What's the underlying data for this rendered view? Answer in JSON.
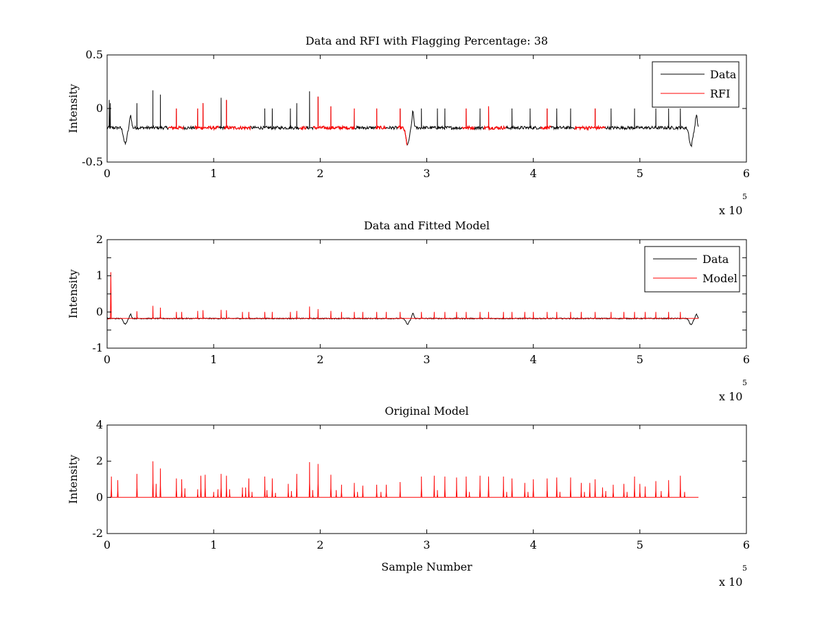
{
  "figure": {
    "background": "#ffffff",
    "colors": {
      "data": "#000000",
      "red": "#ff0000",
      "axis": "#000000"
    }
  },
  "chart_data": [
    {
      "type": "line",
      "title": "Data and RFI with Flagging Percentage: 38",
      "xlabel": "",
      "ylabel": "Intensity",
      "xlim": [
        0,
        6
      ],
      "ylim": [
        -0.5,
        0.5
      ],
      "x_ticks": [
        "0",
        "1",
        "2",
        "3",
        "4",
        "5",
        "6"
      ],
      "y_ticks": [
        "-0.5",
        "0",
        "0.5"
      ],
      "x_exponent": {
        "base": "x 10",
        "power": "5"
      },
      "legend": {
        "position": "top-right",
        "entries": [
          "Data",
          "RFI"
        ]
      },
      "baseline": -0.18,
      "x_end": 5.55,
      "dips": [
        {
          "x": 0.17,
          "y": -0.33
        },
        {
          "x": 2.82,
          "y": -0.34
        },
        {
          "x": 5.48,
          "y": -0.35
        }
      ],
      "bumps": [
        {
          "x": 0.22,
          "y": -0.06
        },
        {
          "x": 2.87,
          "y": -0.03
        },
        {
          "x": 5.53,
          "y": -0.06
        }
      ],
      "start_peak": {
        "x": 0.02,
        "y": 0.08
      },
      "rfi_flagged_ranges": [
        [
          0.57,
          0.72
        ],
        [
          0.82,
          1.05
        ],
        [
          1.1,
          1.35
        ],
        [
          1.8,
          1.87
        ],
        [
          1.93,
          2.32
        ],
        [
          2.52,
          2.62
        ],
        [
          2.72,
          2.82
        ],
        [
          3.33,
          3.45
        ],
        [
          3.53,
          3.75
        ],
        [
          4.07,
          4.17
        ],
        [
          4.38,
          4.68
        ]
      ],
      "spikes": [
        {
          "x": 0.03,
          "y": 0.05
        },
        {
          "x": 0.28,
          "y": 0.05
        },
        {
          "x": 0.43,
          "y": 0.17
        },
        {
          "x": 0.5,
          "y": 0.13
        },
        {
          "x": 0.65,
          "y": 0.0
        },
        {
          "x": 0.85,
          "y": 0.0
        },
        {
          "x": 0.9,
          "y": 0.05
        },
        {
          "x": 1.07,
          "y": 0.1
        },
        {
          "x": 1.12,
          "y": 0.08
        },
        {
          "x": 1.48,
          "y": 0.0
        },
        {
          "x": 1.55,
          "y": 0.0
        },
        {
          "x": 1.72,
          "y": 0.0
        },
        {
          "x": 1.78,
          "y": 0.05
        },
        {
          "x": 1.9,
          "y": 0.16
        },
        {
          "x": 1.98,
          "y": 0.11
        },
        {
          "x": 2.1,
          "y": 0.02
        },
        {
          "x": 2.32,
          "y": 0.0
        },
        {
          "x": 2.53,
          "y": 0.0
        },
        {
          "x": 2.75,
          "y": 0.0
        },
        {
          "x": 2.95,
          "y": 0.0
        },
        {
          "x": 3.1,
          "y": 0.0
        },
        {
          "x": 3.17,
          "y": 0.0
        },
        {
          "x": 3.37,
          "y": 0.0
        },
        {
          "x": 3.5,
          "y": 0.0
        },
        {
          "x": 3.58,
          "y": 0.02
        },
        {
          "x": 3.8,
          "y": 0.0
        },
        {
          "x": 3.97,
          "y": 0.0
        },
        {
          "x": 4.13,
          "y": 0.0
        },
        {
          "x": 4.22,
          "y": 0.0
        },
        {
          "x": 4.35,
          "y": 0.0
        },
        {
          "x": 4.58,
          "y": 0.0
        },
        {
          "x": 4.73,
          "y": 0.0
        },
        {
          "x": 4.95,
          "y": 0.0
        },
        {
          "x": 5.15,
          "y": 0.0
        },
        {
          "x": 5.27,
          "y": 0.0
        },
        {
          "x": 5.38,
          "y": 0.0
        }
      ]
    },
    {
      "type": "line",
      "title": "Data and Fitted Model",
      "xlabel": "",
      "ylabel": "Intensity",
      "xlim": [
        0,
        6
      ],
      "ylim": [
        -1,
        2
      ],
      "x_ticks": [
        "0",
        "1",
        "2",
        "3",
        "4",
        "5",
        "6"
      ],
      "y_ticks": [
        "-1",
        "-0.5",
        "0",
        "0.5",
        "1",
        "1.5",
        "2"
      ],
      "x_exponent": {
        "base": "x 10",
        "power": "5"
      },
      "legend": {
        "position": "top-right",
        "entries": [
          "Data",
          "Model"
        ]
      },
      "baseline": -0.18,
      "x_end": 5.55,
      "dips": [
        {
          "x": 0.17,
          "y": -0.33
        },
        {
          "x": 2.82,
          "y": -0.34
        },
        {
          "x": 5.48,
          "y": -0.35
        }
      ],
      "bumps": [
        {
          "x": 0.22,
          "y": -0.06
        },
        {
          "x": 2.87,
          "y": -0.03
        },
        {
          "x": 5.53,
          "y": -0.06
        }
      ],
      "model_start_spike": {
        "x": 0.035,
        "y": 1.1
      },
      "spikes": [
        {
          "x": 0.28,
          "y": 0.02
        },
        {
          "x": 0.43,
          "y": 0.17
        },
        {
          "x": 0.5,
          "y": 0.12
        },
        {
          "x": 0.65,
          "y": 0.0
        },
        {
          "x": 0.7,
          "y": 0.0
        },
        {
          "x": 0.85,
          "y": 0.03
        },
        {
          "x": 0.9,
          "y": 0.05
        },
        {
          "x": 1.07,
          "y": 0.06
        },
        {
          "x": 1.12,
          "y": 0.05
        },
        {
          "x": 1.27,
          "y": 0.0
        },
        {
          "x": 1.33,
          "y": 0.0
        },
        {
          "x": 1.48,
          "y": 0.0
        },
        {
          "x": 1.55,
          "y": 0.0
        },
        {
          "x": 1.72,
          "y": 0.0
        },
        {
          "x": 1.78,
          "y": 0.03
        },
        {
          "x": 1.9,
          "y": 0.15
        },
        {
          "x": 1.98,
          "y": 0.08
        },
        {
          "x": 2.1,
          "y": 0.03
        },
        {
          "x": 2.2,
          "y": 0.0
        },
        {
          "x": 2.32,
          "y": 0.0
        },
        {
          "x": 2.4,
          "y": 0.0
        },
        {
          "x": 2.53,
          "y": 0.0
        },
        {
          "x": 2.62,
          "y": 0.0
        },
        {
          "x": 2.75,
          "y": 0.0
        },
        {
          "x": 2.95,
          "y": 0.0
        },
        {
          "x": 3.07,
          "y": 0.0
        },
        {
          "x": 3.17,
          "y": 0.0
        },
        {
          "x": 3.28,
          "y": 0.0
        },
        {
          "x": 3.37,
          "y": 0.0
        },
        {
          "x": 3.5,
          "y": 0.0
        },
        {
          "x": 3.58,
          "y": 0.0
        },
        {
          "x": 3.72,
          "y": 0.0
        },
        {
          "x": 3.8,
          "y": 0.0
        },
        {
          "x": 3.92,
          "y": 0.0
        },
        {
          "x": 4.0,
          "y": 0.0
        },
        {
          "x": 4.13,
          "y": 0.0
        },
        {
          "x": 4.22,
          "y": 0.0
        },
        {
          "x": 4.35,
          "y": 0.0
        },
        {
          "x": 4.45,
          "y": 0.0
        },
        {
          "x": 4.58,
          "y": 0.0
        },
        {
          "x": 4.73,
          "y": 0.0
        },
        {
          "x": 4.85,
          "y": 0.0
        },
        {
          "x": 4.95,
          "y": 0.0
        },
        {
          "x": 5.05,
          "y": 0.0
        },
        {
          "x": 5.15,
          "y": 0.0
        },
        {
          "x": 5.27,
          "y": 0.0
        },
        {
          "x": 5.38,
          "y": 0.0
        }
      ]
    },
    {
      "type": "line",
      "title": "Original Model",
      "xlabel": "Sample Number",
      "ylabel": "Intensity",
      "xlim": [
        0,
        6
      ],
      "ylim": [
        -2,
        4
      ],
      "x_ticks": [
        "0",
        "1",
        "2",
        "3",
        "4",
        "5",
        "6"
      ],
      "y_ticks": [
        "-2",
        "0",
        "2",
        "4"
      ],
      "x_exponent": {
        "base": "x 10",
        "power": "5"
      },
      "baseline": 0,
      "x_start": 0.02,
      "x_end": 5.55,
      "spikes": [
        {
          "x": 0.04,
          "y": 1.15
        },
        {
          "x": 0.1,
          "y": 0.95
        },
        {
          "x": 0.28,
          "y": 1.3
        },
        {
          "x": 0.43,
          "y": 2.0
        },
        {
          "x": 0.46,
          "y": 0.75
        },
        {
          "x": 0.5,
          "y": 1.6
        },
        {
          "x": 0.65,
          "y": 1.05
        },
        {
          "x": 0.7,
          "y": 1.0
        },
        {
          "x": 0.73,
          "y": 0.5
        },
        {
          "x": 0.85,
          "y": 0.45
        },
        {
          "x": 0.88,
          "y": 1.2
        },
        {
          "x": 0.92,
          "y": 1.25
        },
        {
          "x": 1.0,
          "y": 0.3
        },
        {
          "x": 1.04,
          "y": 0.45
        },
        {
          "x": 1.07,
          "y": 1.3
        },
        {
          "x": 1.12,
          "y": 1.2
        },
        {
          "x": 1.15,
          "y": 0.45
        },
        {
          "x": 1.27,
          "y": 0.55
        },
        {
          "x": 1.3,
          "y": 0.55
        },
        {
          "x": 1.33,
          "y": 1.05
        },
        {
          "x": 1.36,
          "y": 0.3
        },
        {
          "x": 1.48,
          "y": 1.15
        },
        {
          "x": 1.5,
          "y": 0.4
        },
        {
          "x": 1.55,
          "y": 1.05
        },
        {
          "x": 1.58,
          "y": 0.25
        },
        {
          "x": 1.7,
          "y": 0.75
        },
        {
          "x": 1.73,
          "y": 0.35
        },
        {
          "x": 1.78,
          "y": 1.3
        },
        {
          "x": 1.9,
          "y": 1.95
        },
        {
          "x": 1.93,
          "y": 0.4
        },
        {
          "x": 1.98,
          "y": 1.85
        },
        {
          "x": 2.1,
          "y": 1.25
        },
        {
          "x": 2.15,
          "y": 0.4
        },
        {
          "x": 2.2,
          "y": 0.7
        },
        {
          "x": 2.32,
          "y": 0.8
        },
        {
          "x": 2.35,
          "y": 0.3
        },
        {
          "x": 2.4,
          "y": 0.65
        },
        {
          "x": 2.53,
          "y": 0.7
        },
        {
          "x": 2.57,
          "y": 0.3
        },
        {
          "x": 2.62,
          "y": 0.7
        },
        {
          "x": 2.75,
          "y": 0.85
        },
        {
          "x": 2.95,
          "y": 1.15
        },
        {
          "x": 3.07,
          "y": 1.2
        },
        {
          "x": 3.1,
          "y": 0.4
        },
        {
          "x": 3.17,
          "y": 1.15
        },
        {
          "x": 3.28,
          "y": 1.1
        },
        {
          "x": 3.37,
          "y": 1.15
        },
        {
          "x": 3.4,
          "y": 0.3
        },
        {
          "x": 3.5,
          "y": 1.2
        },
        {
          "x": 3.58,
          "y": 1.15
        },
        {
          "x": 3.72,
          "y": 1.15
        },
        {
          "x": 3.75,
          "y": 0.3
        },
        {
          "x": 3.8,
          "y": 1.05
        },
        {
          "x": 3.92,
          "y": 0.8
        },
        {
          "x": 3.95,
          "y": 0.3
        },
        {
          "x": 4.0,
          "y": 1.0
        },
        {
          "x": 4.13,
          "y": 1.05
        },
        {
          "x": 4.22,
          "y": 1.1
        },
        {
          "x": 4.25,
          "y": 0.3
        },
        {
          "x": 4.35,
          "y": 1.1
        },
        {
          "x": 4.45,
          "y": 0.8
        },
        {
          "x": 4.48,
          "y": 0.3
        },
        {
          "x": 4.53,
          "y": 0.8
        },
        {
          "x": 4.58,
          "y": 1.0
        },
        {
          "x": 4.65,
          "y": 0.55
        },
        {
          "x": 4.68,
          "y": 0.35
        },
        {
          "x": 4.75,
          "y": 0.7
        },
        {
          "x": 4.85,
          "y": 0.75
        },
        {
          "x": 4.88,
          "y": 0.3
        },
        {
          "x": 4.95,
          "y": 1.15
        },
        {
          "x": 5.0,
          "y": 0.75
        },
        {
          "x": 5.05,
          "y": 0.6
        },
        {
          "x": 5.15,
          "y": 0.9
        },
        {
          "x": 5.2,
          "y": 0.35
        },
        {
          "x": 5.27,
          "y": 0.95
        },
        {
          "x": 5.38,
          "y": 1.2
        },
        {
          "x": 5.42,
          "y": 0.3
        }
      ]
    }
  ]
}
